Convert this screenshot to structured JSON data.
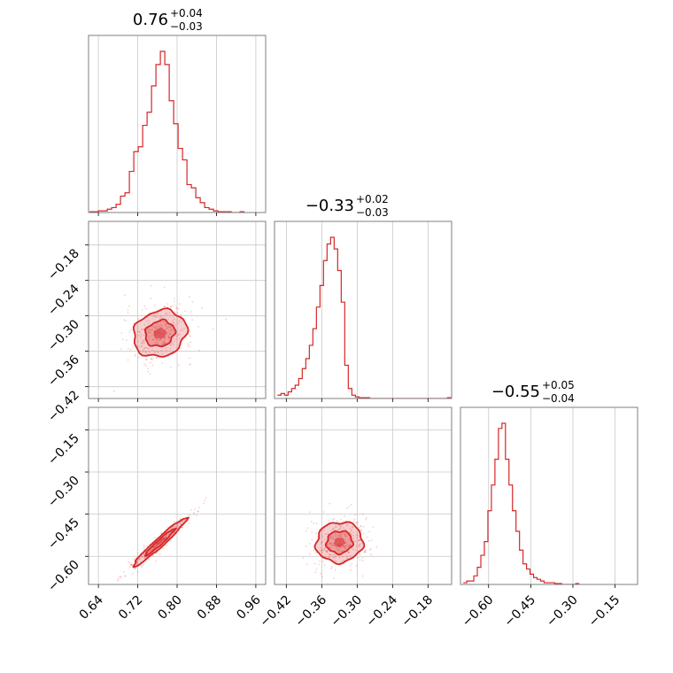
{
  "colors": {
    "series": "#d62728",
    "grid": "#c8c8c8",
    "frame": "#7f7f7f",
    "text": "#000000"
  },
  "chart_data": {
    "type": "corner",
    "grid": true,
    "parameters": [
      {
        "range": [
          0.62,
          0.98
        ],
        "ticks": [
          "0.64",
          "0.72",
          "0.80",
          "0.88",
          "0.96"
        ],
        "title": {
          "median": "0.76",
          "plus": "+0.04",
          "minus": "−0.03"
        }
      },
      {
        "range": [
          -0.44,
          -0.14
        ],
        "ticks": [
          "−0.42",
          "−0.36",
          "−0.30",
          "−0.24",
          "−0.18"
        ],
        "title": {
          "median": "−0.33",
          "plus": "+0.02",
          "minus": "−0.03"
        }
      },
      {
        "range": [
          -0.7,
          -0.07
        ],
        "ticks": [
          "−0.60",
          "−0.45",
          "−0.30",
          "−0.15"
        ],
        "title": {
          "median": "−0.55",
          "plus": "+0.05",
          "minus": "−0.04"
        }
      }
    ],
    "histograms": [
      {
        "param": 0,
        "bin_width": 0.009,
        "bins": [
          0.622,
          0.631,
          0.64,
          0.649,
          0.658,
          0.667,
          0.676,
          0.685,
          0.694,
          0.703,
          0.712,
          0.721,
          0.73,
          0.739,
          0.748,
          0.757,
          0.766,
          0.775,
          0.784,
          0.793,
          0.802,
          0.811,
          0.82,
          0.829,
          0.838,
          0.847,
          0.856,
          0.865,
          0.874,
          0.883,
          0.892,
          0.901,
          0.91,
          0.919,
          0.928
        ],
        "density": [
          0.005,
          0.005,
          0.01,
          0.01,
          0.02,
          0.03,
          0.05,
          0.1,
          0.12,
          0.25,
          0.37,
          0.4,
          0.53,
          0.61,
          0.77,
          0.9,
          0.98,
          0.9,
          0.68,
          0.54,
          0.39,
          0.32,
          0.17,
          0.15,
          0.09,
          0.06,
          0.03,
          0.02,
          0.01,
          0.005,
          0.005,
          0.005,
          0.0,
          0.0,
          0.005
        ]
      },
      {
        "param": 1,
        "bin_width": 0.006,
        "bins": [
          -0.435,
          -0.429,
          -0.423,
          -0.417,
          -0.411,
          -0.405,
          -0.399,
          -0.393,
          -0.387,
          -0.381,
          -0.375,
          -0.369,
          -0.363,
          -0.357,
          -0.351,
          -0.345,
          -0.339,
          -0.333,
          -0.327,
          -0.321,
          -0.315,
          -0.309,
          -0.303,
          -0.297,
          -0.291,
          -0.285,
          -0.279,
          -0.273,
          -0.267,
          -0.261,
          -0.255,
          -0.249,
          -0.243,
          -0.237,
          -0.231,
          -0.225,
          -0.219,
          -0.213,
          -0.207,
          -0.201,
          -0.195,
          -0.189,
          -0.183,
          -0.177,
          -0.171,
          -0.165,
          -0.159,
          -0.153,
          -0.147
        ],
        "density": [
          0.02,
          0.03,
          0.02,
          0.04,
          0.06,
          0.08,
          0.12,
          0.18,
          0.24,
          0.32,
          0.42,
          0.55,
          0.68,
          0.83,
          0.93,
          0.97,
          0.9,
          0.77,
          0.58,
          0.2,
          0.06,
          0.02,
          0.01,
          0.005,
          0.005,
          0.005,
          0.0,
          0.0,
          0.0,
          0.0,
          0.0,
          0.0,
          0.0,
          0.0,
          0.0,
          0.0,
          0.0,
          0.0,
          0.0,
          0.0,
          0.0,
          0.0,
          0.0,
          0.0,
          0.0,
          0.0,
          0.0,
          0.0,
          0.005
        ]
      },
      {
        "param": 2,
        "bin_width": 0.0125,
        "bins": [
          -0.69,
          -0.6775,
          -0.665,
          -0.6525,
          -0.64,
          -0.6275,
          -0.615,
          -0.6025,
          -0.59,
          -0.5775,
          -0.565,
          -0.5525,
          -0.54,
          -0.5275,
          -0.515,
          -0.5025,
          -0.49,
          -0.4775,
          -0.465,
          -0.4525,
          -0.44,
          -0.4275,
          -0.415,
          -0.4025,
          -0.39,
          -0.3775,
          -0.365,
          -0.3525,
          -0.34,
          -0.3275,
          -0.315,
          -0.3025,
          -0.29
        ],
        "density": [
          0.01,
          0.02,
          0.02,
          0.05,
          0.1,
          0.17,
          0.25,
          0.43,
          0.58,
          0.73,
          0.91,
          0.94,
          0.73,
          0.58,
          0.43,
          0.31,
          0.2,
          0.12,
          0.09,
          0.06,
          0.04,
          0.03,
          0.02,
          0.01,
          0.01,
          0.01,
          0.005,
          0.005,
          0.0,
          0.0,
          0.0,
          0.0,
          0.005
        ]
      }
    ],
    "joint_distributions": [
      {
        "x_param": 0,
        "y_param": 1,
        "center": [
          0.765,
          -0.33
        ],
        "sigma": [
          0.03,
          0.022
        ],
        "correlation": 0.15,
        "contour_levels": [
          "1-sigma",
          "2-sigma"
        ]
      },
      {
        "x_param": 0,
        "y_param": 2,
        "center": [
          0.765,
          -0.55
        ],
        "sigma": [
          0.03,
          0.048
        ],
        "correlation": 0.97,
        "contour_levels": [
          "1-sigma",
          "2-sigma"
        ]
      },
      {
        "x_param": 1,
        "y_param": 2,
        "center": [
          -0.33,
          -0.55
        ],
        "sigma": [
          0.022,
          0.04
        ],
        "correlation": 0.05,
        "contour_levels": [
          "1-sigma",
          "2-sigma"
        ]
      }
    ]
  }
}
